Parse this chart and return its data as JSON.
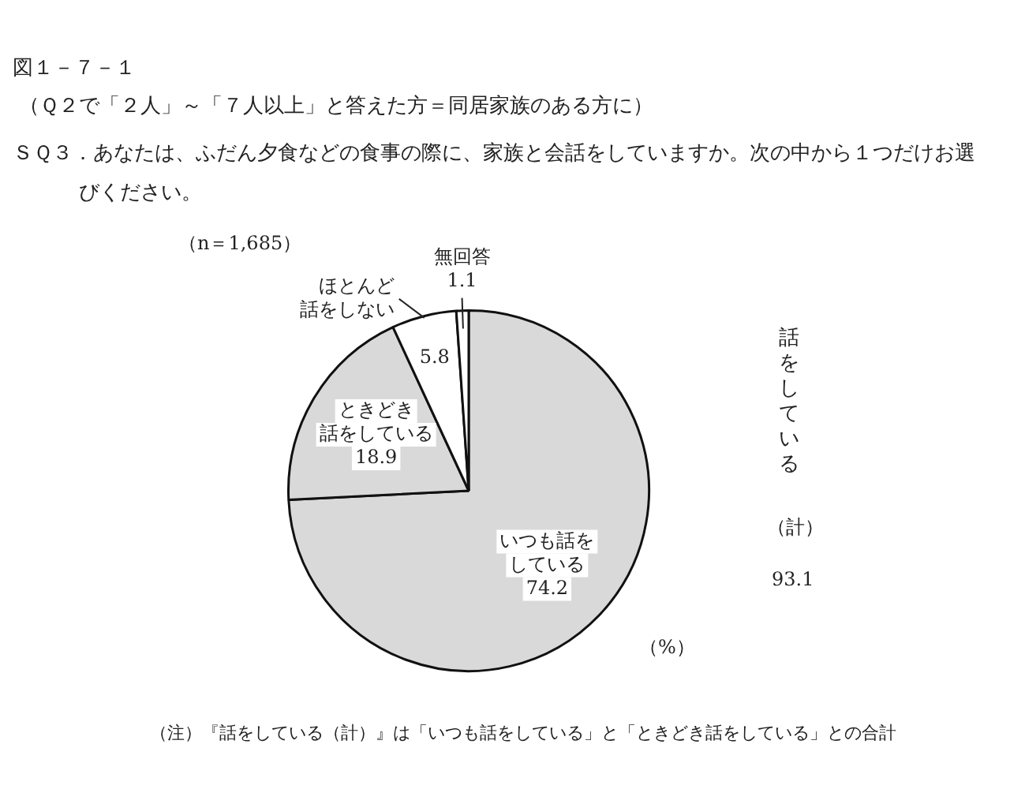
{
  "chart_data": {
    "type": "pie",
    "title": "図１－７－１",
    "subtitle": "（Ｑ２で「２人」～「７人以上」と答えた方＝同居家族のある方に）",
    "categories": [
      "いつも話をしている",
      "ときどき話をしている",
      "ほとんど話をしない",
      "無回答"
    ],
    "values": [
      74.2,
      18.9,
      5.8,
      1.1
    ],
    "colors": [
      "#d9d9d9",
      "#d9d9d9",
      "#ffffff",
      "#ffffff"
    ],
    "data_labels": true,
    "annotations": [
      "ＳＱ３．あなたは、ふだん夕食などの食事の際に、家族と会話をしていますか。次の中から１つだけお選びください。",
      "（n＝1,685）",
      "話をしている",
      "（計）",
      "93.1",
      "（%）",
      "（注）『話をしている（計）』は「いつも話をしている」と「ときどき話をしている」との合計"
    ]
  }
}
